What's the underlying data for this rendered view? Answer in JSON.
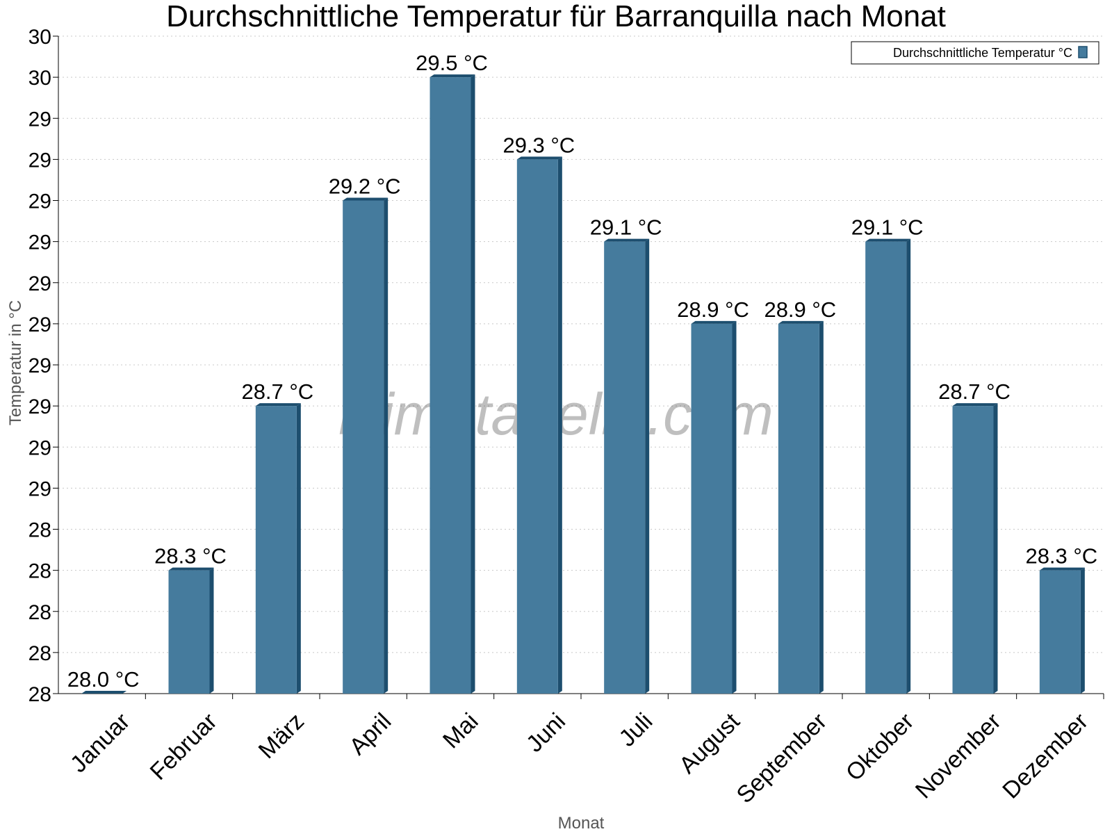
{
  "chart_data": {
    "type": "bar",
    "title": "Durchschnittliche Temperatur für Barranquilla nach Monat",
    "xlabel": "Monat",
    "ylabel": "Temperatur in °C",
    "categories": [
      "Januar",
      "Februar",
      "März",
      "April",
      "Mai",
      "Juni",
      "Juli",
      "August",
      "September",
      "Oktober",
      "November",
      "Dezember"
    ],
    "series": [
      {
        "name": "Durchschnittliche Temperatur °C",
        "values": [
          28.0,
          28.3,
          28.7,
          29.2,
          29.5,
          29.3,
          29.1,
          28.9,
          28.9,
          29.1,
          28.7,
          28.3
        ],
        "labels": [
          "28.0 °C",
          "28.3 °C",
          "28.7 °C",
          "29.2 °C",
          "29.5 °C",
          "29.3 °C",
          "29.1 °C",
          "28.9 °C",
          "28.9 °C",
          "29.1 °C",
          "28.7 °C",
          "28.3 °C"
        ],
        "color": "#457b9d",
        "edge_color": "#1d4e6e"
      }
    ],
    "ylim": [
      28.0,
      29.6
    ],
    "y_ticks": [
      28.0,
      28.1,
      28.2,
      28.3,
      28.4,
      28.5,
      28.6,
      28.7,
      28.8,
      28.9,
      29.0,
      29.1,
      29.2,
      29.3,
      29.4,
      29.5,
      29.6
    ],
    "y_tick_labels": [
      "28",
      "28",
      "28",
      "28",
      "28",
      "29",
      "29",
      "29",
      "29",
      "29",
      "29",
      "29",
      "29",
      "29",
      "29",
      "30",
      "30"
    ],
    "grid": true,
    "legend_position": "top-right",
    "watermark": "klimatabelle.com"
  }
}
